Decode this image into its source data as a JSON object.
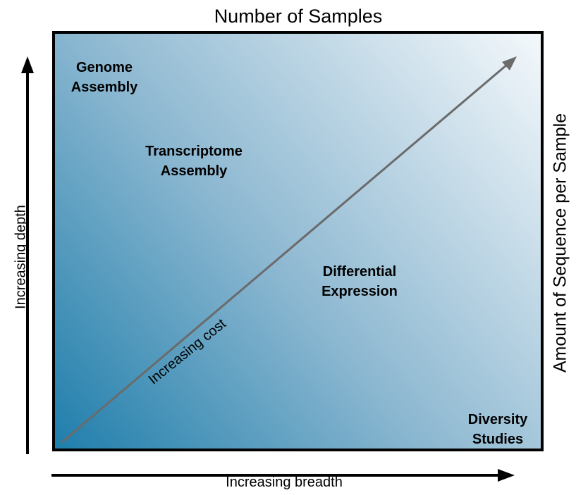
{
  "diagram": {
    "top_title": "Number of Samples",
    "right_title": "Amount of Sequence per Sample",
    "left_axis_label": "Increasing depth",
    "bottom_axis_label": "Increasing breadth",
    "diagonal_label": "Increasing cost",
    "regions": {
      "genome": [
        "Genome",
        "Assembly"
      ],
      "transcriptome": [
        "Transcriptome",
        "Assembly"
      ],
      "differential": [
        "Differential",
        "Expression"
      ],
      "diversity": [
        "Diversity",
        "Studies"
      ]
    },
    "colors": {
      "gradient_dark": "#1f7eab",
      "gradient_mid": "#8db8d1",
      "gradient_light": "#f4f8fb",
      "diagonal_arrow": "#6b6b6b",
      "axis_arrows": "#000000"
    }
  }
}
